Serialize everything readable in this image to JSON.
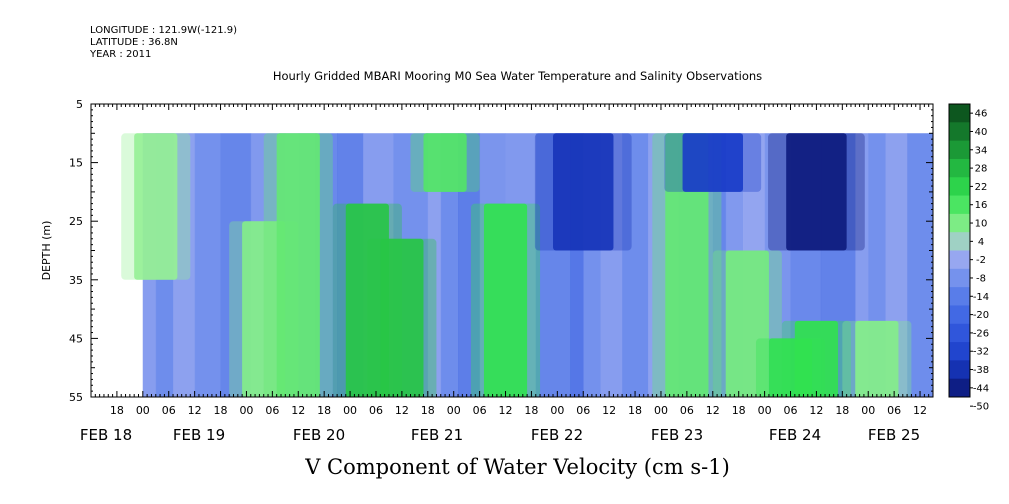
{
  "header": {
    "longitude": "LONGITUDE : 121.9W(-121.9)",
    "latitude": "LATITUDE : 36.8N",
    "year": "YEAR : 2011"
  },
  "chart_data": {
    "type": "heatmap",
    "title": "Hourly Gridded MBARI Mooring M0 Sea Water Temperature and Salinity Observations",
    "xlabel": "V Component of Water Velocity (cm s-1)",
    "ylabel": "DEPTH (m)",
    "ylim": [
      5,
      55
    ],
    "y_inverted": true,
    "y_ticks": [
      5,
      15,
      25,
      35,
      45,
      55
    ],
    "x_hours_start": "FEB 17 12:00",
    "x_hours_end": "FEB 25 15:00",
    "x_hour_ticks": [
      "18",
      "00",
      "06",
      "12",
      "18",
      "00",
      "06",
      "12",
      "18",
      "00",
      "06",
      "12",
      "18",
      "00",
      "06",
      "12",
      "18",
      "00",
      "06",
      "12",
      "18",
      "00",
      "06",
      "12",
      "18",
      "00",
      "06",
      "12",
      "18",
      "00",
      "06",
      "12"
    ],
    "x_date_labels": [
      "FEB 18",
      "FEB 19",
      "FEB 20",
      "FEB 21",
      "FEB 22",
      "FEB 23",
      "FEB 24",
      "FEB 25"
    ],
    "data_extent": {
      "start": "FEB 18 00:00",
      "end": "FEB 25 15:00",
      "depth_top": 10,
      "depth_bottom": 55
    },
    "colorbar": {
      "levels": [
        -50,
        -44,
        -38,
        -32,
        -26,
        -20,
        -14,
        -8,
        -2,
        4,
        10,
        16,
        22,
        28,
        34,
        40,
        46
      ],
      "labels": [
        "46",
        "40",
        "34",
        "28",
        "22",
        "16",
        "10",
        "4",
        "-2",
        "-8",
        "-14",
        "-20",
        "-26",
        "-32",
        "-38",
        "-44",
        "-50"
      ]
    },
    "features": [
      {
        "time": "FEB 18 03:00",
        "v": 4,
        "depth_top": 10,
        "depth_bottom": 35
      },
      {
        "time": "FEB 19 04:00",
        "v": 6,
        "depth_top": 25,
        "depth_bottom": 55
      },
      {
        "time": "FEB 19 12:00",
        "v": 10,
        "depth_top": 10,
        "depth_bottom": 55
      },
      {
        "time": "FEB 20 04:00",
        "v": 22,
        "depth_top": 22,
        "depth_bottom": 55
      },
      {
        "time": "FEB 20 12:00",
        "v": 22,
        "depth_top": 28,
        "depth_bottom": 55
      },
      {
        "time": "FEB 20 22:00",
        "v": 12,
        "depth_top": 10,
        "depth_bottom": 20
      },
      {
        "time": "FEB 21 12:00",
        "v": 16,
        "depth_top": 22,
        "depth_bottom": 55
      },
      {
        "time": "FEB 22 06:00",
        "v": -40,
        "depth_top": 10,
        "depth_bottom": 30
      },
      {
        "time": "FEB 23 06:00",
        "v": 10,
        "depth_top": 10,
        "depth_bottom": 55
      },
      {
        "time": "FEB 23 12:00",
        "v": -38,
        "depth_top": 10,
        "depth_bottom": 20
      },
      {
        "time": "FEB 23 20:00",
        "v": 8,
        "depth_top": 30,
        "depth_bottom": 55
      },
      {
        "time": "FEB 24 06:00",
        "v": 16,
        "depth_top": 45,
        "depth_bottom": 55
      },
      {
        "time": "FEB 24 12:00",
        "v": -48,
        "depth_top": 10,
        "depth_bottom": 30
      },
      {
        "time": "FEB 24 12:00",
        "v": 16,
        "depth_top": 42,
        "depth_bottom": 55
      },
      {
        "time": "FEB 25 02:00",
        "v": 6,
        "depth_top": 42,
        "depth_bottom": 55
      }
    ]
  }
}
